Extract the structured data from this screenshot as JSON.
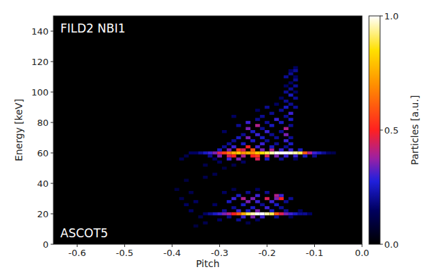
{
  "chart_data": {
    "type": "heatmap",
    "x_label": "Pitch",
    "y_label": "Energy [keV]",
    "annotations": [
      "FILD2 NBI1",
      "ASCOT5"
    ],
    "xlim": [
      -0.65,
      0
    ],
    "xticks": [
      -0.6,
      -0.5,
      -0.4,
      -0.3,
      -0.2,
      -0.1,
      {
        "value": 0,
        "label": "0.0"
      }
    ],
    "ylim": [
      0,
      150
    ],
    "yticks": [
      0,
      20,
      40,
      60,
      80,
      100,
      120,
      140
    ],
    "colorbar_label": "Particles [a.u.]",
    "colorbar_lim": [
      0,
      1
    ],
    "colorbar_ticks": [
      {
        "value": 0,
        "label": "0.0"
      },
      0.5,
      {
        "value": 1,
        "label": "1.0"
      }
    ],
    "pitch_bin": 0.01,
    "energy_bin": 2,
    "cells": [
      [
        -0.35,
        60,
        0.15
      ],
      [
        -0.34,
        60,
        0.2
      ],
      [
        -0.33,
        60,
        0.25
      ],
      [
        -0.32,
        60,
        0.3
      ],
      [
        -0.31,
        60,
        0.35
      ],
      [
        -0.3,
        60,
        0.45
      ],
      [
        -0.29,
        60,
        0.55
      ],
      [
        -0.28,
        60,
        0.65
      ],
      [
        -0.27,
        60,
        0.75
      ],
      [
        -0.26,
        60,
        0.8
      ],
      [
        -0.25,
        60,
        0.7
      ],
      [
        -0.24,
        60,
        0.75
      ],
      [
        -0.23,
        60,
        0.7
      ],
      [
        -0.22,
        60,
        0.8
      ],
      [
        -0.21,
        60,
        0.85
      ],
      [
        -0.2,
        60,
        0.9
      ],
      [
        -0.19,
        60,
        0.95
      ],
      [
        -0.18,
        60,
        1.0
      ],
      [
        -0.17,
        60,
        1.0
      ],
      [
        -0.16,
        60,
        1.0
      ],
      [
        -0.15,
        60,
        0.98
      ],
      [
        -0.14,
        60,
        0.95
      ],
      [
        -0.13,
        60,
        0.9
      ],
      [
        -0.12,
        60,
        0.6
      ],
      [
        -0.11,
        60,
        0.4
      ],
      [
        -0.1,
        60,
        0.3
      ],
      [
        -0.09,
        60,
        0.25
      ],
      [
        -0.08,
        60,
        0.2
      ],
      [
        -0.07,
        60,
        0.15
      ],
      [
        -0.06,
        60,
        0.12
      ],
      [
        -0.32,
        58,
        0.2
      ],
      [
        -0.3,
        58,
        0.35
      ],
      [
        -0.28,
        58,
        0.45
      ],
      [
        -0.27,
        58,
        0.5
      ],
      [
        -0.25,
        58,
        0.4
      ],
      [
        -0.23,
        58,
        0.5
      ],
      [
        -0.22,
        58,
        0.55
      ],
      [
        -0.2,
        58,
        0.45
      ],
      [
        -0.18,
        58,
        0.35
      ],
      [
        -0.16,
        58,
        0.3
      ],
      [
        -0.14,
        58,
        0.3
      ],
      [
        -0.12,
        58,
        0.25
      ],
      [
        -0.1,
        58,
        0.2
      ],
      [
        -0.3,
        62,
        0.25
      ],
      [
        -0.28,
        62,
        0.35
      ],
      [
        -0.26,
        62,
        0.55
      ],
      [
        -0.25,
        62,
        0.45
      ],
      [
        -0.23,
        62,
        0.6
      ],
      [
        -0.21,
        62,
        0.35
      ],
      [
        -0.19,
        62,
        0.4
      ],
      [
        -0.17,
        62,
        0.3
      ],
      [
        -0.15,
        62,
        0.3
      ],
      [
        -0.13,
        62,
        0.25
      ],
      [
        -0.31,
        56,
        0.15
      ],
      [
        -0.28,
        56,
        0.3
      ],
      [
        -0.26,
        56,
        0.35
      ],
      [
        -0.22,
        56,
        0.45
      ],
      [
        -0.2,
        56,
        0.25
      ],
      [
        -0.17,
        56,
        0.2
      ],
      [
        -0.14,
        56,
        0.15
      ],
      [
        -0.29,
        64,
        0.2
      ],
      [
        -0.27,
        64,
        0.3
      ],
      [
        -0.24,
        64,
        0.5
      ],
      [
        -0.22,
        64,
        0.3
      ],
      [
        -0.19,
        64,
        0.25
      ],
      [
        -0.16,
        64,
        0.2
      ],
      [
        -0.28,
        66,
        0.2
      ],
      [
        -0.25,
        66,
        0.25
      ],
      [
        -0.21,
        66,
        0.3
      ],
      [
        -0.18,
        66,
        0.2
      ],
      [
        -0.15,
        66,
        0.25
      ],
      [
        -0.27,
        68,
        0.2
      ],
      [
        -0.23,
        68,
        0.25
      ],
      [
        -0.2,
        68,
        0.2
      ],
      [
        -0.16,
        68,
        0.3
      ],
      [
        -0.26,
        70,
        0.25
      ],
      [
        -0.24,
        70,
        0.35
      ],
      [
        -0.21,
        70,
        0.25
      ],
      [
        -0.18,
        70,
        0.2
      ],
      [
        -0.15,
        70,
        0.2
      ],
      [
        -0.25,
        72,
        0.2
      ],
      [
        -0.22,
        72,
        0.3
      ],
      [
        -0.19,
        72,
        0.2
      ],
      [
        -0.16,
        72,
        0.35
      ],
      [
        -0.29,
        74,
        0.15
      ],
      [
        -0.23,
        74,
        0.25
      ],
      [
        -0.2,
        74,
        0.3
      ],
      [
        -0.17,
        74,
        0.2
      ],
      [
        -0.24,
        76,
        0.35
      ],
      [
        -0.21,
        76,
        0.2
      ],
      [
        -0.16,
        76,
        0.4
      ],
      [
        -0.26,
        78,
        0.2
      ],
      [
        -0.22,
        78,
        0.4
      ],
      [
        -0.19,
        78,
        0.25
      ],
      [
        -0.15,
        78,
        0.2
      ],
      [
        -0.24,
        80,
        0.3
      ],
      [
        -0.2,
        80,
        0.2
      ],
      [
        -0.17,
        80,
        0.25
      ],
      [
        -0.22,
        82,
        0.2
      ],
      [
        -0.18,
        82,
        0.3
      ],
      [
        -0.15,
        82,
        0.25
      ],
      [
        -0.27,
        84,
        0.15
      ],
      [
        -0.21,
        84,
        0.2
      ],
      [
        -0.16,
        84,
        0.2
      ],
      [
        -0.19,
        86,
        0.2
      ],
      [
        -0.15,
        86,
        0.3
      ],
      [
        -0.22,
        88,
        0.15
      ],
      [
        -0.17,
        88,
        0.2
      ],
      [
        -0.2,
        90,
        0.2
      ],
      [
        -0.16,
        90,
        0.25
      ],
      [
        -0.14,
        90,
        0.2
      ],
      [
        -0.18,
        92,
        0.15
      ],
      [
        -0.15,
        92,
        0.2
      ],
      [
        -0.16,
        94,
        0.2
      ],
      [
        -0.17,
        96,
        0.15
      ],
      [
        -0.14,
        96,
        0.2
      ],
      [
        -0.15,
        98,
        0.25
      ],
      [
        -0.16,
        100,
        0.2
      ],
      [
        -0.14,
        100,
        0.15
      ],
      [
        -0.15,
        102,
        0.2
      ],
      [
        -0.16,
        104,
        0.15
      ],
      [
        -0.14,
        104,
        0.2
      ],
      [
        -0.15,
        106,
        0.15
      ],
      [
        -0.14,
        108,
        0.2
      ],
      [
        -0.16,
        110,
        0.2
      ],
      [
        -0.14,
        110,
        0.15
      ],
      [
        -0.15,
        112,
        0.2
      ],
      [
        -0.15,
        114,
        0.15
      ],
      [
        -0.14,
        114,
        0.2
      ],
      [
        -0.14,
        116,
        0.15
      ],
      [
        -0.3,
        54,
        0.15
      ],
      [
        -0.25,
        54,
        0.15
      ],
      [
        -0.27,
        52,
        0.12
      ],
      [
        -0.29,
        50,
        0.1
      ],
      [
        -0.33,
        20,
        0.15
      ],
      [
        -0.32,
        20,
        0.2
      ],
      [
        -0.31,
        20,
        0.25
      ],
      [
        -0.3,
        20,
        0.3
      ],
      [
        -0.29,
        20,
        0.35
      ],
      [
        -0.28,
        20,
        0.4
      ],
      [
        -0.27,
        20,
        0.5
      ],
      [
        -0.26,
        20,
        0.6
      ],
      [
        -0.25,
        20,
        0.75
      ],
      [
        -0.24,
        20,
        0.9
      ],
      [
        -0.23,
        20,
        0.95
      ],
      [
        -0.22,
        20,
        1.0
      ],
      [
        -0.21,
        20,
        1.0
      ],
      [
        -0.2,
        20,
        0.95
      ],
      [
        -0.19,
        20,
        0.9
      ],
      [
        -0.18,
        20,
        0.6
      ],
      [
        -0.17,
        20,
        0.45
      ],
      [
        -0.16,
        20,
        0.35
      ],
      [
        -0.15,
        20,
        0.3
      ],
      [
        -0.14,
        20,
        0.25
      ],
      [
        -0.13,
        20,
        0.2
      ],
      [
        -0.12,
        20,
        0.2
      ],
      [
        -0.11,
        20,
        0.15
      ],
      [
        -0.28,
        18,
        0.2
      ],
      [
        -0.25,
        18,
        0.3
      ],
      [
        -0.23,
        18,
        0.35
      ],
      [
        -0.21,
        18,
        0.3
      ],
      [
        -0.18,
        18,
        0.2
      ],
      [
        -0.15,
        18,
        0.15
      ],
      [
        -0.29,
        22,
        0.2
      ],
      [
        -0.26,
        22,
        0.3
      ],
      [
        -0.24,
        22,
        0.25
      ],
      [
        -0.22,
        22,
        0.35
      ],
      [
        -0.19,
        22,
        0.25
      ],
      [
        -0.16,
        22,
        0.2
      ],
      [
        -0.13,
        22,
        0.15
      ],
      [
        -0.27,
        24,
        0.2
      ],
      [
        -0.23,
        24,
        0.25
      ],
      [
        -0.2,
        24,
        0.3
      ],
      [
        -0.17,
        24,
        0.2
      ],
      [
        -0.31,
        26,
        0.15
      ],
      [
        -0.25,
        26,
        0.25
      ],
      [
        -0.21,
        26,
        0.2
      ],
      [
        -0.18,
        26,
        0.25
      ],
      [
        -0.28,
        28,
        0.25
      ],
      [
        -0.24,
        28,
        0.35
      ],
      [
        -0.22,
        28,
        0.3
      ],
      [
        -0.19,
        28,
        0.3
      ],
      [
        -0.16,
        28,
        0.2
      ],
      [
        -0.27,
        30,
        0.3
      ],
      [
        -0.25,
        30,
        0.4
      ],
      [
        -0.23,
        30,
        0.35
      ],
      [
        -0.2,
        30,
        0.45
      ],
      [
        -0.18,
        30,
        0.35
      ],
      [
        -0.17,
        30,
        0.5
      ],
      [
        -0.15,
        30,
        0.2
      ],
      [
        -0.26,
        32,
        0.25
      ],
      [
        -0.22,
        32,
        0.3
      ],
      [
        -0.18,
        32,
        0.4
      ],
      [
        -0.17,
        32,
        0.3
      ],
      [
        -0.29,
        34,
        0.15
      ],
      [
        -0.24,
        34,
        0.2
      ],
      [
        -0.2,
        34,
        0.2
      ],
      [
        -0.27,
        36,
        0.12
      ],
      [
        -0.22,
        36,
        0.15
      ],
      [
        -0.3,
        16,
        0.15
      ],
      [
        -0.26,
        16,
        0.2
      ],
      [
        -0.22,
        16,
        0.15
      ],
      [
        -0.33,
        14,
        0.12
      ],
      [
        -0.24,
        14,
        0.12
      ],
      [
        -0.38,
        30,
        0.12
      ],
      [
        -0.37,
        26,
        0.15
      ],
      [
        -0.36,
        22,
        0.15
      ],
      [
        -0.35,
        28,
        0.15
      ],
      [
        -0.34,
        18,
        0.12
      ],
      [
        -0.36,
        34,
        0.12
      ],
      [
        -0.39,
        36,
        0.1
      ],
      [
        -0.35,
        12,
        0.1
      ],
      [
        -0.37,
        42,
        0.1
      ],
      [
        -0.33,
        44,
        0.12
      ],
      [
        -0.31,
        46,
        0.12
      ],
      [
        -0.33,
        52,
        0.12
      ],
      [
        -0.38,
        56,
        0.12
      ],
      [
        -0.36,
        60,
        0.15
      ],
      [
        -0.37,
        58,
        0.12
      ]
    ]
  }
}
